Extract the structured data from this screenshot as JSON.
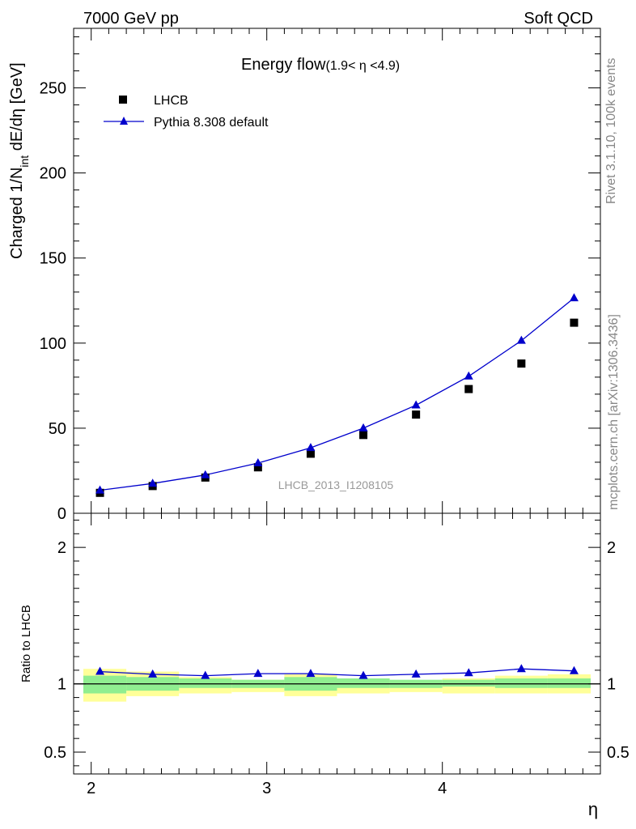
{
  "header": {
    "energy": "7000 GeV pp",
    "process": "Soft QCD"
  },
  "side_labels": {
    "rivet": "Rivet 3.1.10,  100k events",
    "mcplots": "mcplots.cern.ch [arXiv:1306.3436]"
  },
  "watermark": "LHCB_2013_I1208105",
  "chart_data": [
    {
      "type": "scatter",
      "title": "Energy flow",
      "title_suffix": "(1.9< η <4.9)",
      "xlabel": "η",
      "ylabel": "Charged 1/N",
      "ylabel_sub": "int",
      "ylabel_rest": " dE/dη [GeV]",
      "xlim": [
        1.9,
        4.9
      ],
      "ylim": [
        0,
        285
      ],
      "x_ticks": [
        2,
        3,
        4
      ],
      "x_ticklabels": [
        "2",
        "3",
        "4"
      ],
      "y_ticks": [
        0,
        50,
        100,
        150,
        200,
        250
      ],
      "y_ticklabels": [
        "0",
        "50",
        "100",
        "150",
        "200",
        "250"
      ],
      "grid": false,
      "legend_position": "top-left",
      "x": [
        2.05,
        2.35,
        2.65,
        2.95,
        3.25,
        3.55,
        3.85,
        4.15,
        4.45,
        4.75
      ],
      "bin_edges": [
        1.9,
        2.2,
        2.5,
        2.8,
        3.1,
        3.4,
        3.7,
        4.0,
        4.3,
        4.6,
        4.9
      ],
      "series": [
        {
          "name": "LHCB",
          "marker": "square",
          "color": "#000000",
          "values": [
            12.0,
            16.0,
            21.0,
            27.0,
            35.0,
            46.0,
            58.0,
            73.0,
            88.0,
            112.0
          ]
        },
        {
          "name": "Pythia 8.308 default",
          "marker": "triangle",
          "color": "#0000cc",
          "values": [
            13.5,
            17.5,
            22.5,
            29.5,
            38.5,
            50.0,
            63.5,
            80.5,
            101.5,
            126.5
          ]
        }
      ]
    },
    {
      "type": "line",
      "ylabel": "Ratio to LHCB",
      "xlim": [
        1.9,
        4.9
      ],
      "ylim": [
        0.34,
        2.25
      ],
      "y_ticks": [
        0.5,
        1,
        2
      ],
      "y_ticklabels": [
        "0.5",
        "1",
        "2"
      ],
      "x": [
        2.05,
        2.35,
        2.65,
        2.95,
        3.25,
        3.55,
        3.85,
        4.15,
        4.45,
        4.75
      ],
      "bin_edges": [
        1.9,
        2.2,
        2.5,
        2.8,
        3.1,
        3.4,
        3.7,
        4.0,
        4.3,
        4.6,
        4.9
      ],
      "reference_line": 1,
      "band_inner": {
        "color": "#90ee90",
        "lower": [
          0.93,
          0.95,
          0.97,
          0.97,
          0.95,
          0.97,
          0.97,
          0.98,
          0.97,
          0.97
        ],
        "upper": [
          1.06,
          1.05,
          1.04,
          1.03,
          1.05,
          1.04,
          1.03,
          1.03,
          1.04,
          1.04
        ]
      },
      "band_outer": {
        "color": "#ffff99",
        "lower": [
          0.87,
          0.91,
          0.93,
          0.94,
          0.91,
          0.93,
          0.94,
          0.93,
          0.93,
          0.93
        ],
        "upper": [
          1.11,
          1.09,
          1.05,
          1.03,
          1.07,
          1.04,
          1.02,
          1.04,
          1.06,
          1.07
        ]
      },
      "series": [
        {
          "name": "Pythia 8.308 default",
          "color": "#0000cc",
          "values": [
            1.09,
            1.07,
            1.06,
            1.075,
            1.075,
            1.06,
            1.07,
            1.08,
            1.11,
            1.095
          ]
        }
      ]
    }
  ]
}
